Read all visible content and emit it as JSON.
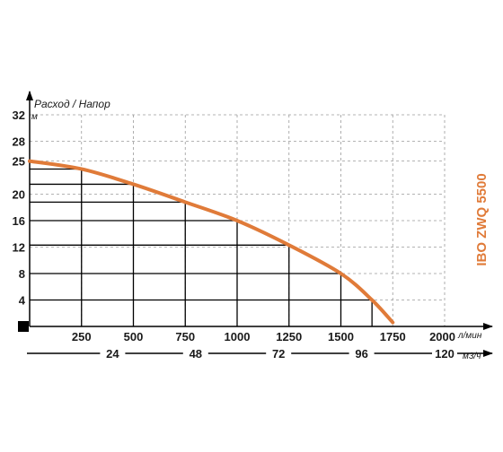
{
  "chart_data": {
    "type": "line",
    "subtitle": "Расход / Напор",
    "model_label": "IBO ZWQ 5500",
    "y_axis": {
      "unit": "м",
      "ticks": [
        4,
        8,
        12,
        16,
        20,
        25,
        28,
        32
      ],
      "ylim": [
        0,
        32
      ]
    },
    "x_axis": {
      "unit": "л/мин",
      "ticks": [
        250,
        500,
        750,
        1000,
        1250,
        1500,
        1750,
        2000
      ],
      "xlim": [
        0,
        2000
      ]
    },
    "x_axis_secondary": {
      "unit": "м3/ч",
      "ticks": [
        24,
        48,
        72,
        96,
        120
      ]
    },
    "grid": true,
    "series": [
      {
        "color": "#e07b39",
        "x": [
          0,
          250,
          500,
          750,
          1000,
          1250,
          1500,
          1650,
          1750
        ],
        "y": [
          25,
          23.8,
          21.5,
          18.8,
          16,
          12.3,
          8,
          4,
          0.6
        ]
      }
    ],
    "guide_points": [
      {
        "x": 250,
        "y": 23.8
      },
      {
        "x": 500,
        "y": 21.5
      },
      {
        "x": 750,
        "y": 18.8
      },
      {
        "x": 1000,
        "y": 16
      },
      {
        "x": 1250,
        "y": 12.3
      },
      {
        "x": 1500,
        "y": 8
      },
      {
        "x": 1650,
        "y": 4
      }
    ]
  }
}
